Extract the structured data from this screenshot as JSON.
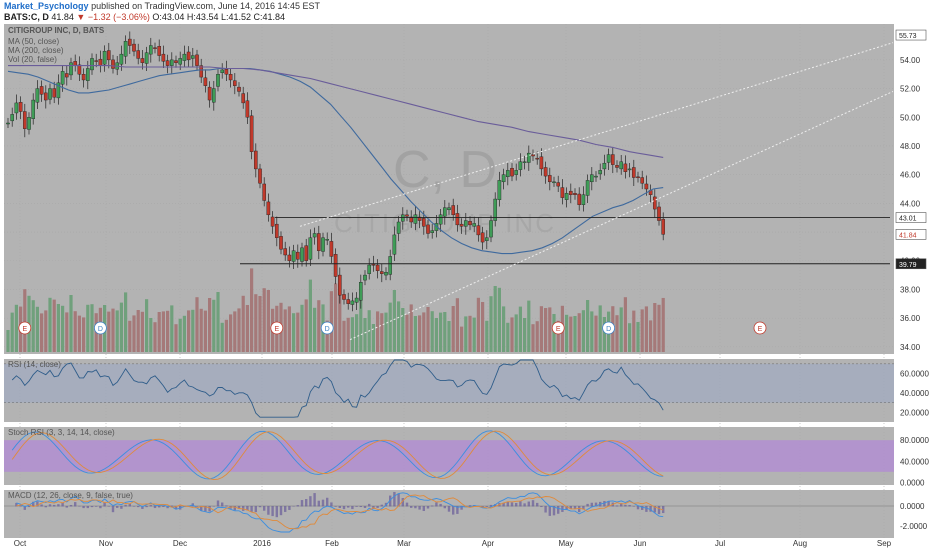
{
  "header": {
    "author": "Market_Psychology",
    "published": "published on TradingView.com, June 14, 2016 14:45 EST",
    "symbol": "BATS:C, D",
    "last": "41.84",
    "change": "−1.32 (−3.06%)",
    "ohlc": "O:43.04 H:43.54 L:41.52 C:41.84"
  },
  "colors": {
    "background": "#b3b3b3",
    "bull": "#3f9c57",
    "bear": "#c0392b",
    "ma50": "#3f6a9e",
    "ma200": "#6a5d9a",
    "rsi_band": "#9aa8c4",
    "stoch_band": "#b28ad6",
    "macd_line": "#3b8ee0",
    "signal_line": "#e08a3b"
  },
  "chart_data": [
    {
      "type": "candlestick",
      "title": "CITIGROUP INC, D, BATS",
      "watermark": "C, D",
      "watermark_sub": "CITIGROUP INC",
      "legend": [
        "MA (50, close)",
        "MA (200, close)",
        "Vol (20, false)"
      ],
      "x_ticks": [
        "Oct",
        "Nov",
        "Dec",
        "2016",
        "Feb",
        "Mar",
        "Apr",
        "May",
        "Jun",
        "Jul",
        "Aug",
        "Sep"
      ],
      "y_ticks": [
        "54.00",
        "52.00",
        "50.00",
        "48.00",
        "46.00",
        "44.00",
        "42.00",
        "40.00",
        "38.00",
        "36.00",
        "34.00"
      ],
      "ylim": [
        33.5,
        56.5
      ],
      "price_labels": [
        {
          "value": 55.73,
          "text": "55.73"
        },
        {
          "value": 43.01,
          "text": "43.01"
        },
        {
          "value": 41.84,
          "text": "41.84"
        },
        {
          "value": 39.79,
          "text": "39.79"
        }
      ],
      "events": [
        {
          "x": 4,
          "label": "E"
        },
        {
          "x": 22,
          "label": "D"
        },
        {
          "x": 64,
          "label": "E"
        },
        {
          "x": 76,
          "label": "D"
        },
        {
          "x": 131,
          "label": "E"
        },
        {
          "x": 143,
          "label": "D"
        },
        {
          "x": 193,
          "label": "E"
        }
      ],
      "close": [
        49.6,
        50.2,
        51.0,
        50.4,
        49.2,
        50.0,
        51.2,
        52.0,
        51.6,
        51.2,
        52.0,
        51.4,
        52.4,
        53.2,
        52.8,
        53.8,
        53.6,
        53.0,
        52.6,
        53.4,
        54.1,
        53.9,
        53.6,
        54.6,
        54.0,
        53.4,
        53.8,
        54.4,
        55.3,
        55.0,
        54.6,
        54.1,
        53.8,
        54.5,
        55.0,
        54.8,
        54.3,
        53.9,
        53.6,
        54.0,
        53.8,
        54.1,
        54.4,
        54.0,
        54.3,
        53.6,
        52.8,
        52.2,
        51.2,
        52.0,
        53.0,
        53.3,
        53.0,
        52.6,
        52.2,
        51.8,
        51.0,
        50.0,
        47.6,
        46.4,
        45.4,
        44.2,
        43.2,
        42.4,
        41.6,
        40.8,
        40.4,
        40.0,
        40.7,
        40.1,
        40.9,
        40.0,
        41.6,
        41.9,
        40.7,
        41.6,
        41.5,
        40.3,
        38.9,
        37.6,
        37.3,
        37.0,
        37.2,
        37.4,
        38.5,
        39.0,
        39.7,
        39.7,
        39.3,
        39.1,
        39.2,
        40.3,
        41.8,
        42.7,
        43.2,
        43.1,
        42.7,
        43.2,
        42.8,
        42.4,
        41.9,
        42.1,
        42.6,
        43.2,
        43.7,
        43.7,
        43.2,
        42.5,
        42.4,
        42.8,
        42.5,
        42.6,
        41.8,
        41.3,
        41.6,
        42.8,
        44.3,
        45.6,
        46.0,
        46.3,
        45.9,
        46.3,
        46.9,
        46.9,
        47.5,
        47.3,
        47.1,
        46.4,
        45.9,
        45.5,
        45.5,
        45.2,
        44.4,
        44.7,
        44.6,
        44.6,
        43.9,
        44.6,
        45.6,
        46.0,
        45.9,
        46.3,
        46.8,
        47.4,
        46.7,
        46.5,
        46.9,
        46.2,
        46.4,
        45.8,
        45.8,
        45.4,
        45.0,
        44.6,
        43.6,
        42.8,
        41.84
      ],
      "ma50": [
        53.2,
        53.1,
        53.0,
        52.8,
        52.5,
        52.2,
        51.9,
        51.7,
        51.7,
        51.8,
        51.9,
        52.1,
        52.3,
        52.5,
        52.7,
        52.9,
        53.0,
        53.1,
        53.2,
        53.3,
        53.3,
        53.4,
        53.4,
        53.4,
        53.4,
        53.3,
        53.2,
        53.0,
        52.8,
        52.5,
        52.1,
        51.5,
        50.9,
        50.1,
        49.3,
        48.4,
        47.5,
        46.6,
        45.7,
        44.9,
        44.1,
        43.4,
        42.7,
        42.1,
        41.6,
        41.2,
        40.9,
        40.7,
        40.6,
        40.5,
        40.5,
        40.6,
        40.7,
        40.9,
        41.2,
        41.6,
        42.1,
        42.6,
        43.1,
        43.4,
        43.7,
        43.9,
        44.2,
        44.6,
        45.0,
        45.1
      ],
      "ma200": [
        53.6,
        53.6,
        53.6,
        53.6,
        53.6,
        53.6,
        53.6,
        53.5,
        53.5,
        53.5,
        53.5,
        53.5,
        53.5,
        53.4,
        53.4,
        53.3,
        53.1,
        52.9,
        52.7,
        52.4,
        52.1,
        51.8,
        51.5,
        51.2,
        50.9,
        50.6,
        50.3,
        50.0,
        49.7,
        49.5,
        49.3,
        49.0,
        48.8,
        48.6,
        48.4,
        48.1,
        47.9,
        47.6,
        47.4,
        47.2
      ]
    },
    {
      "type": "line",
      "title": "RSI (14, close)",
      "y_ticks": [
        "60.0000",
        "40.0000",
        "20.0000"
      ]
    },
    {
      "type": "line",
      "title": "Stoch RSI (3, 3, 14, 14, close)",
      "y_ticks": [
        "80.0000",
        "40.0000",
        "0.0000"
      ]
    },
    {
      "type": "line",
      "title": "MACD (12, 26, close, 9, false, true)",
      "y_ticks": [
        "0.0000",
        "-2.0000"
      ]
    }
  ]
}
